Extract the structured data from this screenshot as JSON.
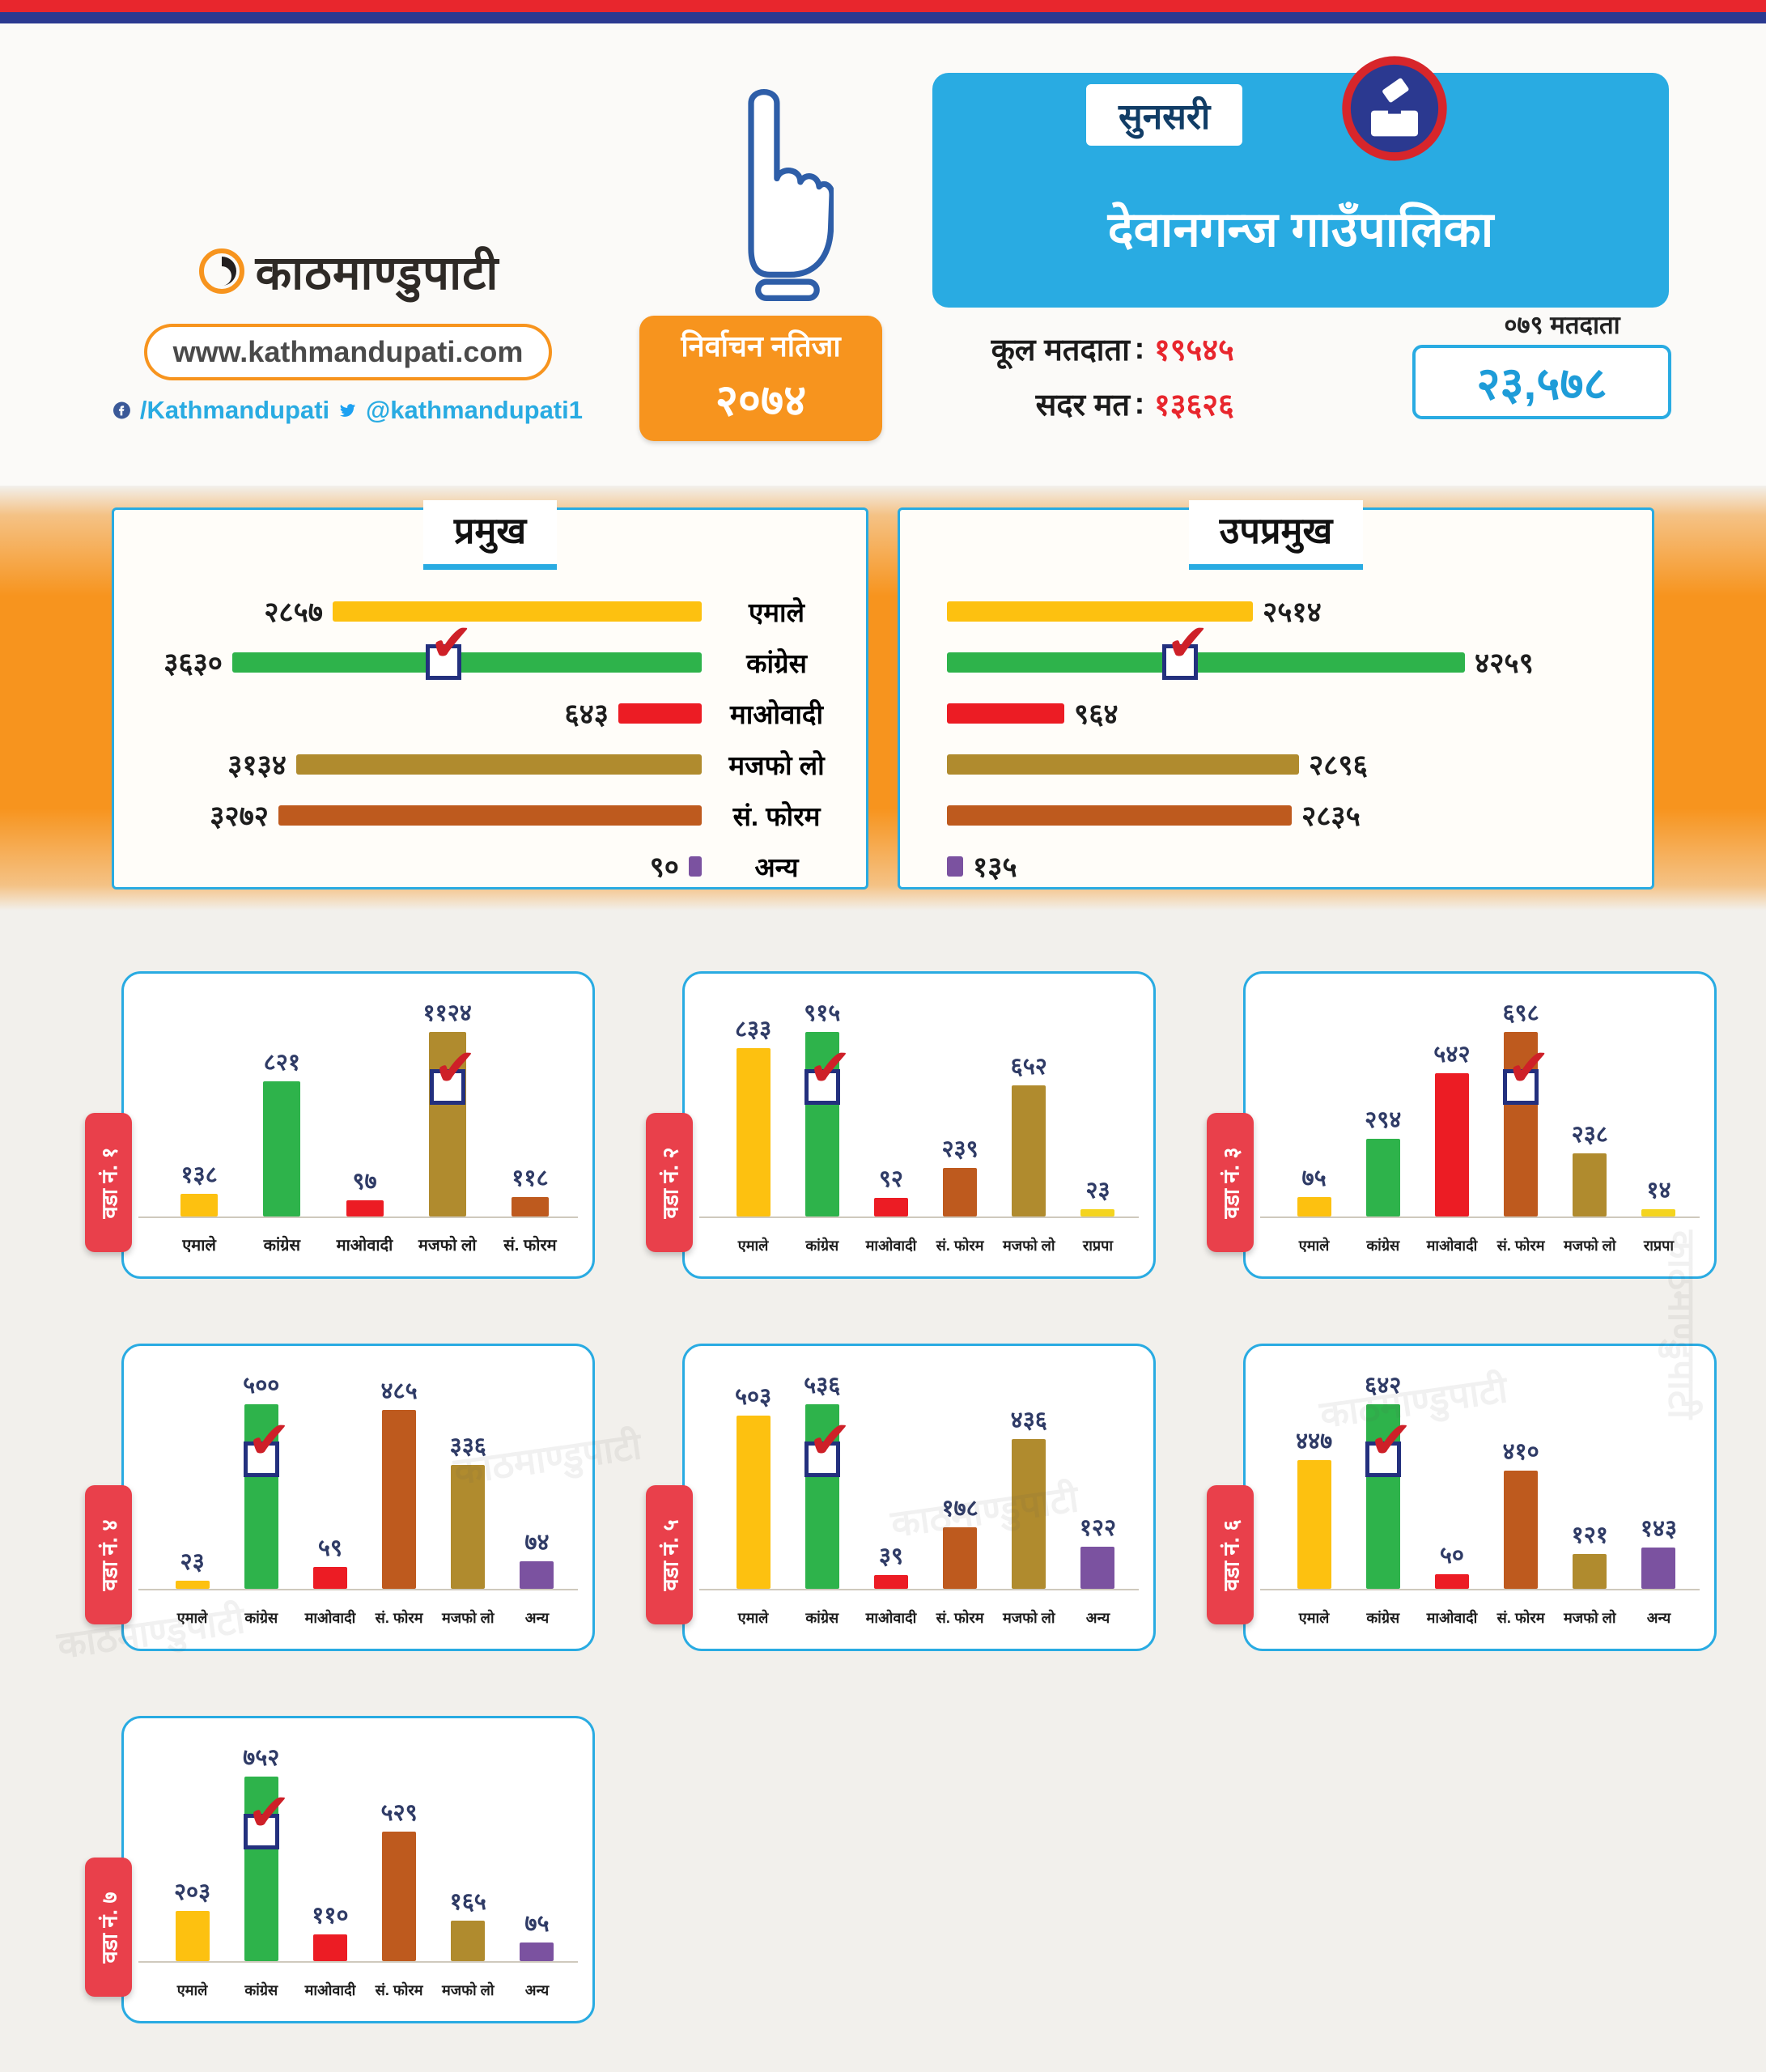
{
  "page": {
    "watermark": "काठमाण्डुपाटी"
  },
  "colors": {
    "accent_orange": "#F7941E",
    "accent_cyan": "#29ABE2",
    "accent_red": "#E8262D",
    "accent_navy": "#2B3990",
    "ward_tab_red": "#E9404B"
  },
  "header": {
    "brand_name": "काठमाण्डुपाटी",
    "website": "www.kathmandupati.com",
    "facebook_handle": "/Kathmandupati",
    "twitter_handle": "@kathmandupati1",
    "badge_line1": "निर्वाचन नतिजा",
    "badge_line2": "२०७४",
    "district": "सुनसरी",
    "municipality": "देवानगन्ज गाउँपालिका",
    "total_voters_label": "कूल मतदाता",
    "total_voters_value": "१९५४५",
    "valid_votes_label": "सदर मत",
    "valid_votes_value": "१३६२६",
    "voters079_label": "०७९ मतदाता",
    "voters079_value": "२३,५७८"
  },
  "chart_data": [
    {
      "type": "bar",
      "orientation": "horizontal",
      "title": "प्रमुख vs उपप्रमुख",
      "categories": [
        "एमाले",
        "कांग्रेस",
        "माओवादी",
        "मजफो लो",
        "सं. फोरम",
        "अन्य"
      ],
      "colors": [
        "#FDC110",
        "#2EB34B",
        "#EC1C24",
        "#B08B2E",
        "#BE5A1E",
        "#7B52A0"
      ],
      "series": [
        {
          "name": "प्रमुख",
          "values": [
            2857,
            3630,
            643,
            3134,
            3272,
            90
          ],
          "value_labels": [
            "२८५७",
            "३६३०",
            "६४३",
            "३१३४",
            "३२७२",
            "९०"
          ],
          "winner_index": 1
        },
        {
          "name": "उपप्रमुख",
          "values": [
            2514,
            4259,
            964,
            2896,
            2835,
            135
          ],
          "value_labels": [
            "२५१४",
            "४२५९",
            "९६४",
            "२८९६",
            "२८३५",
            "१३५"
          ],
          "winner_index": 1
        }
      ]
    },
    {
      "type": "bar",
      "title": "वडा नं. १",
      "categories": [
        "एमाले",
        "कांग्रेस",
        "माओवादी",
        "मजफो लो",
        "सं. फोरम"
      ],
      "values": [
        138,
        821,
        97,
        1124,
        118
      ],
      "value_labels": [
        "१३८",
        "८२१",
        "९७",
        "११२४",
        "११८"
      ],
      "colors": [
        "#FDC110",
        "#2EB34B",
        "#EC1C24",
        "#B08B2E",
        "#BE5A1E"
      ],
      "winner_index": 3
    },
    {
      "type": "bar",
      "title": "वडा नं. २",
      "categories": [
        "एमाले",
        "कांग्रेस",
        "माओवादी",
        "सं. फोरम",
        "मजफो लो",
        "राप्रपा"
      ],
      "values": [
        833,
        915,
        92,
        239,
        652,
        23
      ],
      "value_labels": [
        "८३३",
        "९१५",
        "९२",
        "२३९",
        "६५२",
        "२३"
      ],
      "colors": [
        "#FDC110",
        "#2EB34B",
        "#EC1C24",
        "#BE5A1E",
        "#B08B2E",
        "#F4D41F"
      ],
      "winner_index": 1
    },
    {
      "type": "bar",
      "title": "वडा नं. ३",
      "categories": [
        "एमाले",
        "कांग्रेस",
        "माओवादी",
        "सं. फोरम",
        "मजफो लो",
        "राप्रपा"
      ],
      "values": [
        75,
        294,
        542,
        698,
        238,
        14
      ],
      "value_labels": [
        "७५",
        "२९४",
        "५४२",
        "६९८",
        "२३८",
        "१४"
      ],
      "colors": [
        "#FDC110",
        "#2EB34B",
        "#EC1C24",
        "#BE5A1E",
        "#B08B2E",
        "#F4D41F"
      ],
      "winner_index": 3
    },
    {
      "type": "bar",
      "title": "वडा नं. ४",
      "categories": [
        "एमाले",
        "कांग्रेस",
        "माओवादी",
        "सं. फोरम",
        "मजफो लो",
        "अन्य"
      ],
      "values": [
        23,
        500,
        59,
        485,
        336,
        74
      ],
      "value_labels": [
        "२३",
        "५००",
        "५९",
        "४८५",
        "३३६",
        "७४"
      ],
      "colors": [
        "#FDC110",
        "#2EB34B",
        "#EC1C24",
        "#BE5A1E",
        "#B08B2E",
        "#7B52A0"
      ],
      "winner_index": 1
    },
    {
      "type": "bar",
      "title": "वडा नं. ५",
      "categories": [
        "एमाले",
        "कांग्रेस",
        "माओवादी",
        "सं. फोरम",
        "मजफो लो",
        "अन्य"
      ],
      "values": [
        503,
        536,
        39,
        178,
        436,
        122
      ],
      "value_labels": [
        "५०३",
        "५३६",
        "३९",
        "१७८",
        "४३६",
        "१२२"
      ],
      "colors": [
        "#FDC110",
        "#2EB34B",
        "#EC1C24",
        "#BE5A1E",
        "#B08B2E",
        "#7B52A0"
      ],
      "winner_index": 1
    },
    {
      "type": "bar",
      "title": "वडा नं. ६",
      "categories": [
        "एमाले",
        "कांग्रेस",
        "माओवादी",
        "सं. फोरम",
        "मजफो लो",
        "अन्य"
      ],
      "values": [
        447,
        642,
        50,
        410,
        121,
        143
      ],
      "value_labels": [
        "४४७",
        "६४२",
        "५०",
        "४१०",
        "१२१",
        "१४३"
      ],
      "colors": [
        "#FDC110",
        "#2EB34B",
        "#EC1C24",
        "#BE5A1E",
        "#B08B2E",
        "#7B52A0"
      ],
      "winner_index": 1
    },
    {
      "type": "bar",
      "title": "वडा नं. ७",
      "categories": [
        "एमाले",
        "कांग्रेस",
        "माओवादी",
        "सं. फोरम",
        "मजफो लो",
        "अन्य"
      ],
      "values": [
        203,
        752,
        110,
        529,
        165,
        75
      ],
      "value_labels": [
        "२०३",
        "७५२",
        "११०",
        "५२९",
        "१६५",
        "७५"
      ],
      "colors": [
        "#FDC110",
        "#2EB34B",
        "#EC1C24",
        "#BE5A1E",
        "#B08B2E",
        "#7B52A0"
      ],
      "winner_index": 1
    }
  ]
}
